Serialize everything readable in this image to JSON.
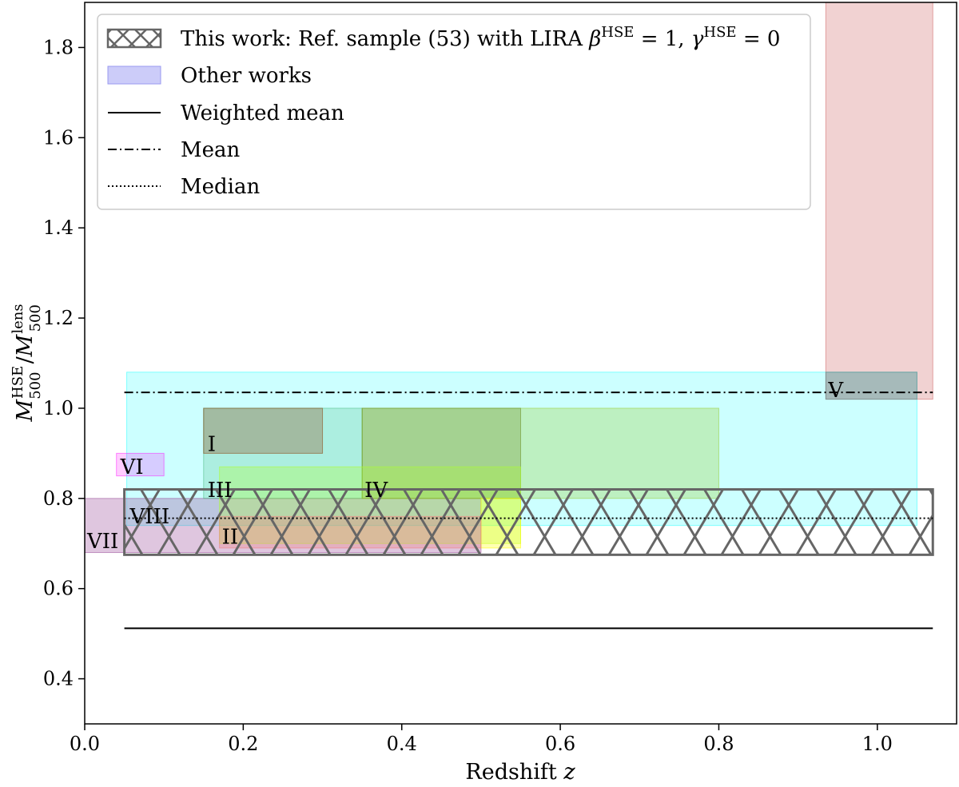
{
  "chart_data": {
    "type": "area",
    "xlabel": "Redshift",
    "xlabel_var": "z",
    "ylabel": {
      "m1": "M",
      "sup1": "HSE",
      "sub1": "500",
      "slash": "/",
      "m2": "M",
      "sup2": "lens",
      "sub2": "500"
    },
    "xlim": [
      0.0,
      1.1
    ],
    "ylim": [
      0.3,
      1.9
    ],
    "x_ticks": [
      "0.0",
      "0.2",
      "0.4",
      "0.6",
      "0.8",
      "1.0"
    ],
    "y_ticks": [
      "0.4",
      "0.6",
      "0.8",
      "1.0",
      "1.2",
      "1.4",
      "1.6",
      "1.8"
    ],
    "grid": false,
    "legend_position": "top-left",
    "legend": [
      {
        "kind": "hatch",
        "prefix": "This work: Ref. sample (53) with LIRA ",
        "b": "β",
        "b_sup": "HSE",
        "b_val": " = 1, ",
        "g": "γ",
        "g_sup": "HSE",
        "g_val": " = 0"
      },
      {
        "kind": "patch",
        "label": "Other works",
        "color": "#aaaaf5"
      },
      {
        "kind": "solid",
        "label": "Weighted mean"
      },
      {
        "kind": "dashdot",
        "label": "Mean"
      },
      {
        "kind": "dotted",
        "label": "Median"
      }
    ],
    "this_work": {
      "x": [
        0.05,
        1.07
      ],
      "y": [
        0.675,
        0.82
      ],
      "edge_color": "#666666"
    },
    "other_works": [
      {
        "label": "",
        "x": [
          0.053,
          1.05
        ],
        "y": [
          0.74,
          1.08
        ],
        "color": "#00ffff",
        "opacity": 0.2
      },
      {
        "label": "V",
        "x": [
          0.935,
          1.07
        ],
        "y": [
          1.02,
          1.9
        ],
        "color": "#cd5c5c",
        "opacity": 0.28
      },
      {
        "label": "",
        "x": [
          0.935,
          1.05
        ],
        "y": [
          1.02,
          1.08
        ],
        "color": "#5f8f8f",
        "opacity": 0.35
      },
      {
        "label": "VII",
        "x": [
          0.0,
          0.05
        ],
        "y": [
          0.68,
          0.8
        ],
        "color": "#9b4f9b",
        "opacity": 0.32
      },
      {
        "label": "VI",
        "x": [
          0.04,
          0.1
        ],
        "y": [
          0.85,
          0.9
        ],
        "color": "#ff00ff",
        "opacity": 0.2
      },
      {
        "label": "VIII",
        "x": [
          0.05,
          0.5
        ],
        "y": [
          0.68,
          0.8
        ],
        "color": "#9b4f9b",
        "opacity": 0.32
      },
      {
        "label": "",
        "x": [
          0.15,
          0.35
        ],
        "y": [
          0.8,
          1.0
        ],
        "color": "#3cb371",
        "opacity": 0.22
      },
      {
        "label": "IV",
        "x": [
          0.35,
          0.8
        ],
        "y": [
          0.8,
          1.0
        ],
        "color": "#9acd32",
        "opacity": 0.3
      },
      {
        "label": "",
        "x": [
          0.35,
          0.55
        ],
        "y": [
          0.8,
          1.0
        ],
        "color": "#6b8e23",
        "opacity": 0.3
      },
      {
        "label": "III",
        "x": [
          0.17,
          0.55
        ],
        "y": [
          0.7,
          0.87
        ],
        "color": "#adff2f",
        "opacity": 0.3
      },
      {
        "label": "",
        "x": [
          0.5,
          0.55
        ],
        "y": [
          0.69,
          0.8
        ],
        "color": "#ffff00",
        "opacity": 0.3
      },
      {
        "label": "II",
        "x": [
          0.17,
          0.5
        ],
        "y": [
          0.69,
          0.76
        ],
        "color": "#f08080",
        "opacity": 0.32
      },
      {
        "label": "I",
        "x": [
          0.15,
          0.3
        ],
        "y": [
          0.9,
          1.0
        ],
        "color": "#8b4513",
        "opacity": 0.3
      }
    ],
    "region_labels": [
      {
        "text": "I",
        "x": 0.155,
        "y": 0.905
      },
      {
        "text": "II",
        "x": 0.173,
        "y": 0.7
      },
      {
        "text": "III",
        "x": 0.155,
        "y": 0.803
      },
      {
        "text": "IV",
        "x": 0.353,
        "y": 0.803
      },
      {
        "text": "V",
        "x": 0.938,
        "y": 1.025
      },
      {
        "text": "VI",
        "x": 0.045,
        "y": 0.855
      },
      {
        "text": "VII",
        "x": 0.003,
        "y": 0.69
      },
      {
        "text": "VIII",
        "x": 0.057,
        "y": 0.745
      }
    ],
    "lines": [
      {
        "kind": "solid",
        "label": "Weighted mean",
        "y": 0.512,
        "x": [
          0.05,
          1.07
        ]
      },
      {
        "kind": "dashdot",
        "label": "Mean",
        "y": 1.035,
        "x": [
          0.05,
          1.07
        ]
      },
      {
        "kind": "dotted",
        "label": "Median",
        "y": 0.756,
        "x": [
          0.05,
          1.07
        ]
      }
    ]
  }
}
